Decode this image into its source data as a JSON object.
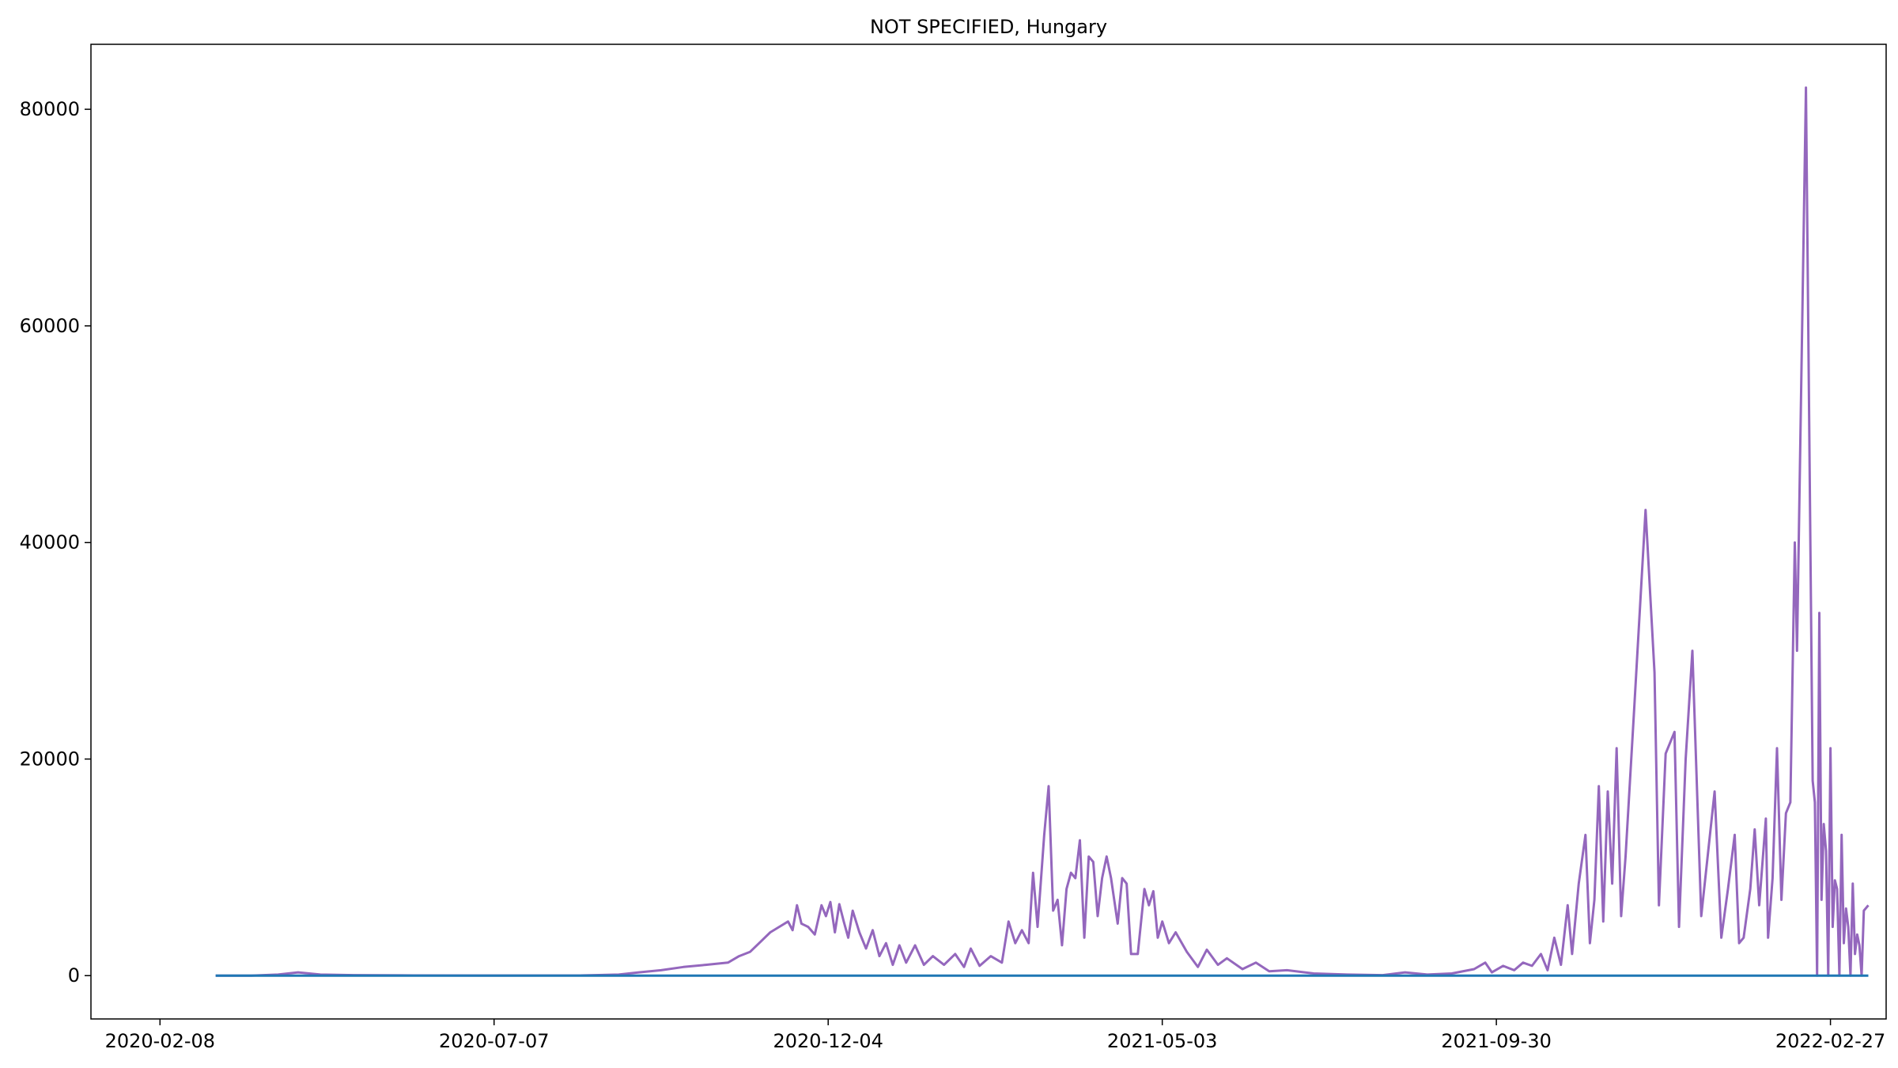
{
  "chart_data": {
    "type": "line",
    "title": "NOT SPECIFIED, Hungary",
    "xlabel": "",
    "ylabel": "",
    "x_ticks": [
      "2020-02-08",
      "2020-07-07",
      "2020-12-04",
      "2021-05-03",
      "2021-09-30",
      "2022-02-27"
    ],
    "y_ticks": [
      0,
      20000,
      40000,
      60000,
      80000
    ],
    "xlim": [
      "2020-01-08",
      "2022-03-24"
    ],
    "ylim": [
      -4000,
      86000
    ],
    "grid": false,
    "legend": "none",
    "series": [
      {
        "color": "#9467bd",
        "points": [
          [
            "2020-03-04",
            0
          ],
          [
            "2020-03-20",
            0
          ],
          [
            "2020-04-01",
            100
          ],
          [
            "2020-04-10",
            300
          ],
          [
            "2020-04-20",
            100
          ],
          [
            "2020-05-05",
            50
          ],
          [
            "2020-06-01",
            20
          ],
          [
            "2020-07-01",
            10
          ],
          [
            "2020-08-15",
            20
          ],
          [
            "2020-09-01",
            100
          ],
          [
            "2020-09-10",
            300
          ],
          [
            "2020-09-20",
            500
          ],
          [
            "2020-09-30",
            800
          ],
          [
            "2020-10-10",
            1000
          ],
          [
            "2020-10-20",
            1200
          ],
          [
            "2020-10-25",
            1800
          ],
          [
            "2020-10-30",
            2200
          ],
          [
            "2020-11-03",
            3000
          ],
          [
            "2020-11-08",
            4000
          ],
          [
            "2020-11-12",
            4500
          ],
          [
            "2020-11-16",
            5000
          ],
          [
            "2020-11-18",
            4200
          ],
          [
            "2020-11-20",
            6500
          ],
          [
            "2020-11-22",
            4800
          ],
          [
            "2020-11-25",
            4500
          ],
          [
            "2020-11-28",
            3800
          ],
          [
            "2020-12-01",
            6500
          ],
          [
            "2020-12-03",
            5500
          ],
          [
            "2020-12-05",
            6800
          ],
          [
            "2020-12-07",
            4000
          ],
          [
            "2020-12-09",
            6600
          ],
          [
            "2020-12-11",
            5000
          ],
          [
            "2020-12-13",
            3500
          ],
          [
            "2020-12-15",
            6000
          ],
          [
            "2020-12-18",
            4000
          ],
          [
            "2020-12-21",
            2500
          ],
          [
            "2020-12-24",
            4200
          ],
          [
            "2020-12-27",
            1800
          ],
          [
            "2020-12-30",
            3000
          ],
          [
            "2021-01-02",
            1000
          ],
          [
            "2021-01-05",
            2800
          ],
          [
            "2021-01-08",
            1200
          ],
          [
            "2021-01-12",
            2800
          ],
          [
            "2021-01-16",
            1000
          ],
          [
            "2021-01-20",
            1800
          ],
          [
            "2021-01-25",
            1000
          ],
          [
            "2021-01-30",
            2000
          ],
          [
            "2021-02-03",
            800
          ],
          [
            "2021-02-06",
            2500
          ],
          [
            "2021-02-10",
            900
          ],
          [
            "2021-02-15",
            1800
          ],
          [
            "2021-02-20",
            1200
          ],
          [
            "2021-02-23",
            5000
          ],
          [
            "2021-02-26",
            3000
          ],
          [
            "2021-03-01",
            4200
          ],
          [
            "2021-03-04",
            3000
          ],
          [
            "2021-03-06",
            9500
          ],
          [
            "2021-03-08",
            4500
          ],
          [
            "2021-03-11",
            13000
          ],
          [
            "2021-03-13",
            17500
          ],
          [
            "2021-03-15",
            6000
          ],
          [
            "2021-03-17",
            7000
          ],
          [
            "2021-03-19",
            2800
          ],
          [
            "2021-03-21",
            8000
          ],
          [
            "2021-03-23",
            9500
          ],
          [
            "2021-03-25",
            9000
          ],
          [
            "2021-03-27",
            12500
          ],
          [
            "2021-03-29",
            3500
          ],
          [
            "2021-03-31",
            11000
          ],
          [
            "2021-04-02",
            10500
          ],
          [
            "2021-04-04",
            5500
          ],
          [
            "2021-04-06",
            9000
          ],
          [
            "2021-04-08",
            11000
          ],
          [
            "2021-04-10",
            9000
          ],
          [
            "2021-04-13",
            4800
          ],
          [
            "2021-04-15",
            9000
          ],
          [
            "2021-04-17",
            8500
          ],
          [
            "2021-04-19",
            2000
          ],
          [
            "2021-04-22",
            2000
          ],
          [
            "2021-04-25",
            8000
          ],
          [
            "2021-04-27",
            6500
          ],
          [
            "2021-04-29",
            7800
          ],
          [
            "2021-05-01",
            3500
          ],
          [
            "2021-05-03",
            5000
          ],
          [
            "2021-05-06",
            3000
          ],
          [
            "2021-05-09",
            4000
          ],
          [
            "2021-05-14",
            2200
          ],
          [
            "2021-05-19",
            800
          ],
          [
            "2021-05-23",
            2400
          ],
          [
            "2021-05-28",
            1000
          ],
          [
            "2021-06-01",
            1600
          ],
          [
            "2021-06-08",
            600
          ],
          [
            "2021-06-14",
            1200
          ],
          [
            "2021-06-20",
            400
          ],
          [
            "2021-06-28",
            500
          ],
          [
            "2021-07-10",
            200
          ],
          [
            "2021-07-25",
            100
          ],
          [
            "2021-08-10",
            50
          ],
          [
            "2021-08-20",
            300
          ],
          [
            "2021-08-30",
            100
          ],
          [
            "2021-09-10",
            200
          ],
          [
            "2021-09-20",
            600
          ],
          [
            "2021-09-25",
            1200
          ],
          [
            "2021-09-28",
            300
          ],
          [
            "2021-10-03",
            900
          ],
          [
            "2021-10-08",
            500
          ],
          [
            "2021-10-12",
            1200
          ],
          [
            "2021-10-16",
            900
          ],
          [
            "2021-10-20",
            2000
          ],
          [
            "2021-10-23",
            500
          ],
          [
            "2021-10-26",
            3500
          ],
          [
            "2021-10-29",
            1000
          ],
          [
            "2021-11-01",
            6500
          ],
          [
            "2021-11-03",
            2000
          ],
          [
            "2021-11-06",
            8500
          ],
          [
            "2021-11-09",
            13000
          ],
          [
            "2021-11-11",
            3000
          ],
          [
            "2021-11-13",
            7000
          ],
          [
            "2021-11-15",
            17500
          ],
          [
            "2021-11-17",
            5000
          ],
          [
            "2021-11-19",
            17000
          ],
          [
            "2021-11-21",
            8500
          ],
          [
            "2021-11-23",
            21000
          ],
          [
            "2021-11-25",
            5500
          ],
          [
            "2021-11-27",
            11000
          ],
          [
            "2021-12-01",
            25000
          ],
          [
            "2021-12-06",
            43000
          ],
          [
            "2021-12-10",
            28000
          ],
          [
            "2021-12-12",
            6500
          ],
          [
            "2021-12-15",
            20500
          ],
          [
            "2021-12-19",
            22500
          ],
          [
            "2021-12-21",
            4500
          ],
          [
            "2021-12-24",
            20000
          ],
          [
            "2021-12-27",
            30000
          ],
          [
            "2021-12-31",
            5500
          ],
          [
            "2022-01-06",
            17000
          ],
          [
            "2022-01-09",
            3500
          ],
          [
            "2022-01-12",
            8000
          ],
          [
            "2022-01-15",
            13000
          ],
          [
            "2022-01-17",
            3000
          ],
          [
            "2022-01-19",
            3500
          ],
          [
            "2022-01-22",
            8000
          ],
          [
            "2022-01-24",
            13500
          ],
          [
            "2022-01-26",
            6500
          ],
          [
            "2022-01-29",
            14500
          ],
          [
            "2022-01-30",
            3500
          ],
          [
            "2022-02-01",
            9000
          ],
          [
            "2022-02-03",
            21000
          ],
          [
            "2022-02-05",
            7000
          ],
          [
            "2022-02-07",
            15000
          ],
          [
            "2022-02-09",
            16000
          ],
          [
            "2022-02-11",
            40000
          ],
          [
            "2022-02-12",
            30000
          ],
          [
            "2022-02-16",
            82000
          ],
          [
            "2022-02-19",
            18000
          ],
          [
            "2022-02-20",
            16000
          ],
          [
            "2022-02-21",
            0
          ],
          [
            "2022-02-22",
            33500
          ],
          [
            "2022-02-23",
            7000
          ],
          [
            "2022-02-24",
            14000
          ],
          [
            "2022-02-25",
            11500
          ],
          [
            "2022-02-26",
            0
          ],
          [
            "2022-02-27",
            21000
          ],
          [
            "2022-02-28",
            4500
          ],
          [
            "2022-03-01",
            8800
          ],
          [
            "2022-03-02",
            8000
          ],
          [
            "2022-03-03",
            0
          ],
          [
            "2022-03-04",
            13000
          ],
          [
            "2022-03-05",
            3000
          ],
          [
            "2022-03-06",
            6200
          ],
          [
            "2022-03-07",
            4500
          ],
          [
            "2022-03-08",
            0
          ],
          [
            "2022-03-09",
            8500
          ],
          [
            "2022-03-10",
            2000
          ],
          [
            "2022-03-11",
            3800
          ],
          [
            "2022-03-12",
            2800
          ],
          [
            "2022-03-13",
            0
          ],
          [
            "2022-03-14",
            6000
          ],
          [
            "2022-03-16",
            6500
          ]
        ]
      },
      {
        "color": "#1f77b4",
        "points": [
          [
            "2020-03-04",
            0
          ],
          [
            "2022-03-16",
            0
          ]
        ]
      }
    ]
  }
}
